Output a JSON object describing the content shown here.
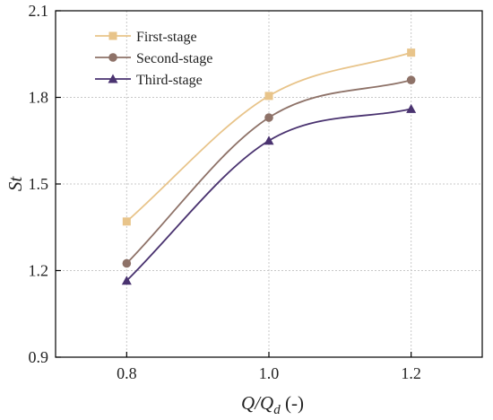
{
  "chart_data": {
    "type": "line",
    "title": "",
    "xlabel": {
      "main": "Q/Q",
      "sub": "d",
      "unit": " (-)"
    },
    "ylabel": "St",
    "x": [
      0.8,
      1.0,
      1.2
    ],
    "xlim": [
      0.7,
      1.3
    ],
    "ylim": [
      0.9,
      2.1
    ],
    "xticks": [
      "0.8",
      "1.0",
      "1.2"
    ],
    "yticks": [
      "0.9",
      "1.2",
      "1.5",
      "1.8",
      "2.1"
    ],
    "grid": true,
    "legend_position": "top-left",
    "series": [
      {
        "name": "First-stage",
        "values": [
          1.37,
          1.805,
          1.955
        ],
        "color": "#e8c48a",
        "marker": "square"
      },
      {
        "name": "Second-stage",
        "values": [
          1.225,
          1.73,
          1.86
        ],
        "color": "#8e7268",
        "marker": "circle"
      },
      {
        "name": "Third-stage",
        "values": [
          1.165,
          1.65,
          1.76
        ],
        "color": "#4a3370",
        "marker": "triangle"
      }
    ]
  }
}
